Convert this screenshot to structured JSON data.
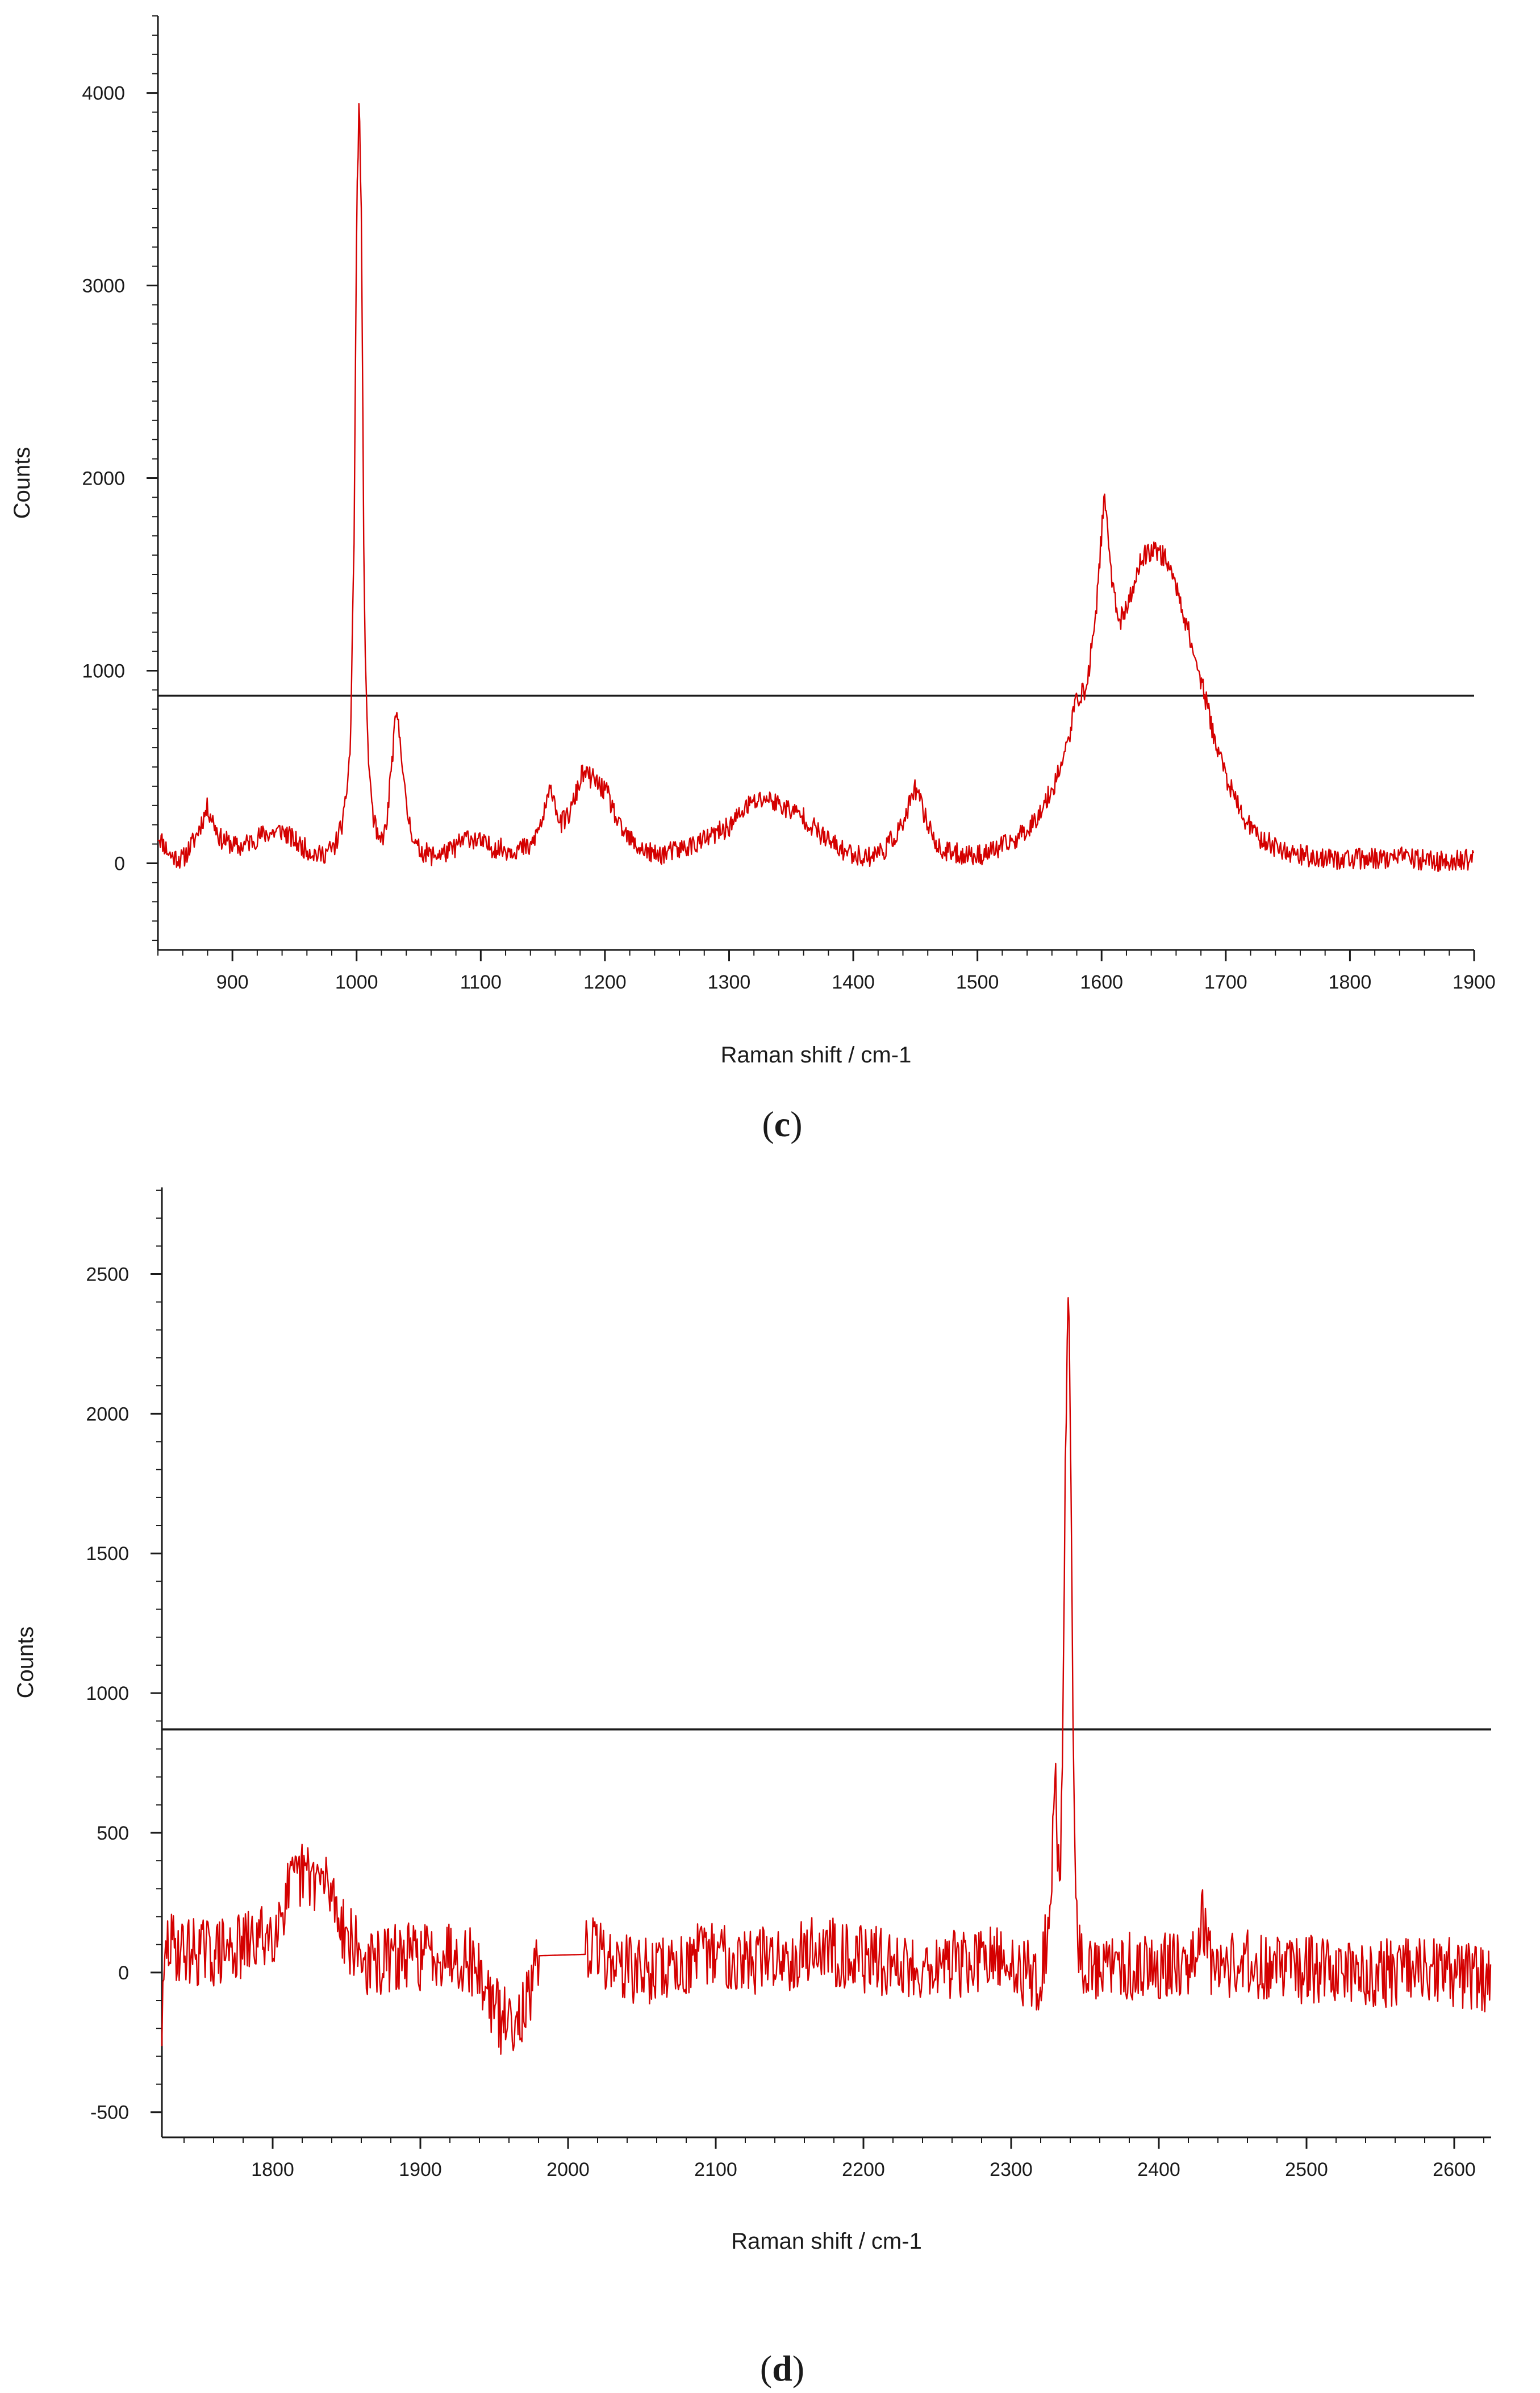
{
  "colors": {
    "spectrum": "#d40000",
    "axis": "#1a1a1a",
    "reference_line": "#1a1a1a",
    "background": "#ffffff"
  },
  "chart_data": [
    {
      "type": "line",
      "panel": "c",
      "caption": {
        "open": "(",
        "letter": "c",
        "close": ")"
      },
      "xlabel": "Raman shift / cm-1",
      "ylabel": "Counts",
      "xlim": [
        840,
        1900
      ],
      "ylim": [
        -450,
        4400
      ],
      "x_major_ticks": [
        900,
        1000,
        1100,
        1200,
        1300,
        1400,
        1500,
        1600,
        1700,
        1800,
        1900
      ],
      "y_major_ticks": [
        0,
        1000,
        2000,
        3000,
        4000
      ],
      "x_minor_step": 20,
      "y_minor_step": 100,
      "grid": false,
      "reference_line": {
        "y": 870
      },
      "series": [
        {
          "noise_seed": 11,
          "noise_amplitude": 55,
          "points": [
            [
              840,
              150
            ],
            [
              850,
              40
            ],
            [
              860,
              20
            ],
            [
              870,
              130
            ],
            [
              880,
              290
            ],
            [
              890,
              130
            ],
            [
              905,
              80
            ],
            [
              925,
              150
            ],
            [
              940,
              170
            ],
            [
              955,
              90
            ],
            [
              970,
              40
            ],
            [
              982,
              80
            ],
            [
              990,
              240
            ],
            [
              995,
              600
            ],
            [
              998,
              1700
            ],
            [
              1000,
              3300
            ],
            [
              1002,
              3990
            ],
            [
              1004,
              3300
            ],
            [
              1006,
              1400
            ],
            [
              1009,
              600
            ],
            [
              1013,
              250
            ],
            [
              1018,
              100
            ],
            [
              1024,
              180
            ],
            [
              1028,
              500
            ],
            [
              1032,
              780
            ],
            [
              1036,
              600
            ],
            [
              1040,
              280
            ],
            [
              1048,
              80
            ],
            [
              1060,
              40
            ],
            [
              1075,
              60
            ],
            [
              1090,
              140
            ],
            [
              1105,
              90
            ],
            [
              1120,
              70
            ],
            [
              1140,
              80
            ],
            [
              1150,
              230
            ],
            [
              1157,
              400
            ],
            [
              1164,
              200
            ],
            [
              1172,
              260
            ],
            [
              1182,
              470
            ],
            [
              1192,
              430
            ],
            [
              1202,
              360
            ],
            [
              1212,
              180
            ],
            [
              1225,
              90
            ],
            [
              1240,
              40
            ],
            [
              1260,
              70
            ],
            [
              1280,
              120
            ],
            [
              1300,
              190
            ],
            [
              1315,
              300
            ],
            [
              1330,
              340
            ],
            [
              1345,
              290
            ],
            [
              1360,
              240
            ],
            [
              1375,
              140
            ],
            [
              1390,
              70
            ],
            [
              1410,
              30
            ],
            [
              1425,
              70
            ],
            [
              1440,
              200
            ],
            [
              1450,
              390
            ],
            [
              1458,
              240
            ],
            [
              1470,
              60
            ],
            [
              1485,
              50
            ],
            [
              1500,
              40
            ],
            [
              1515,
              70
            ],
            [
              1530,
              120
            ],
            [
              1545,
              210
            ],
            [
              1560,
              380
            ],
            [
              1572,
              600
            ],
            [
              1580,
              860
            ],
            [
              1588,
              900
            ],
            [
              1596,
              1350
            ],
            [
              1602,
              1900
            ],
            [
              1608,
              1500
            ],
            [
              1614,
              1250
            ],
            [
              1622,
              1350
            ],
            [
              1632,
              1580
            ],
            [
              1642,
              1640
            ],
            [
              1652,
              1580
            ],
            [
              1662,
              1400
            ],
            [
              1672,
              1150
            ],
            [
              1682,
              900
            ],
            [
              1692,
              620
            ],
            [
              1702,
              420
            ],
            [
              1712,
              260
            ],
            [
              1725,
              140
            ],
            [
              1745,
              70
            ],
            [
              1770,
              30
            ],
            [
              1800,
              20
            ],
            [
              1840,
              30
            ],
            [
              1870,
              10
            ],
            [
              1900,
              20
            ]
          ]
        }
      ]
    },
    {
      "type": "line",
      "panel": "d",
      "caption": {
        "open": "(",
        "letter": "d",
        "close": ")"
      },
      "xlabel": "Raman shift / cm-1",
      "ylabel": "Counts",
      "xlim": [
        1725,
        2625
      ],
      "ylim": [
        -590,
        2810
      ],
      "x_major_ticks": [
        1800,
        1900,
        2000,
        2100,
        2200,
        2300,
        2400,
        2500,
        2600
      ],
      "y_major_ticks": [
        -500,
        0,
        500,
        1000,
        1500,
        2000,
        2500
      ],
      "x_minor_step": 20,
      "y_minor_step": 100,
      "grid": false,
      "reference_line": {
        "y": 870
      },
      "series": [
        {
          "noise_seed": 29,
          "noise_amplitude": 125,
          "points": [
            [
              1725,
              -200
            ],
            [
              1728,
              100
            ],
            [
              1740,
              80
            ],
            [
              1760,
              70
            ],
            [
              1780,
              90
            ],
            [
              1800,
              150
            ],
            [
              1810,
              280
            ],
            [
              1820,
              350
            ],
            [
              1830,
              340
            ],
            [
              1840,
              290
            ],
            [
              1850,
              130
            ],
            [
              1865,
              20
            ],
            [
              1880,
              50
            ],
            [
              1900,
              60
            ],
            [
              1920,
              80
            ],
            [
              1935,
              40
            ],
            [
              1945,
              -60
            ],
            [
              1955,
              -180
            ],
            [
              1965,
              -150
            ],
            [
              1975,
              -100
            ],
            [
              1980,
              60
            ],
            [
              2012,
              65
            ],
            [
              2015,
              100
            ],
            [
              2030,
              40
            ],
            [
              2050,
              0
            ],
            [
              2080,
              30
            ],
            [
              2100,
              80
            ],
            [
              2120,
              40
            ],
            [
              2150,
              60
            ],
            [
              2170,
              90
            ],
            [
              2200,
              50
            ],
            [
              2230,
              20
            ],
            [
              2260,
              30
            ],
            [
              2290,
              40
            ],
            [
              2310,
              0
            ],
            [
              2320,
              -30
            ],
            [
              2326,
              200
            ],
            [
              2330,
              650
            ],
            [
              2333,
              300
            ],
            [
              2335,
              900
            ],
            [
              2337,
              1900
            ],
            [
              2339,
              2560
            ],
            [
              2341,
              1500
            ],
            [
              2343,
              400
            ],
            [
              2345,
              100
            ],
            [
              2350,
              0
            ],
            [
              2380,
              20
            ],
            [
              2400,
              30
            ],
            [
              2420,
              40
            ],
            [
              2430,
              200
            ],
            [
              2435,
              40
            ],
            [
              2460,
              30
            ],
            [
              2500,
              10
            ],
            [
              2550,
              0
            ],
            [
              2600,
              0
            ],
            [
              2625,
              -30
            ]
          ]
        }
      ]
    }
  ]
}
